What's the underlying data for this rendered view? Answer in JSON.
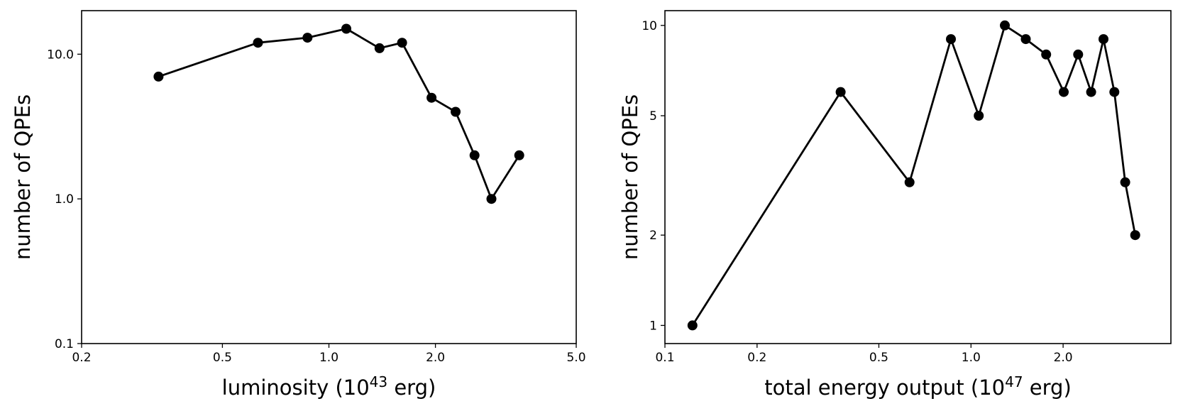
{
  "chart_data": [
    {
      "type": "line",
      "xscale": "log",
      "yscale": "log",
      "xlim": [
        0.2,
        5.0
      ],
      "ylim": [
        0.1,
        20
      ],
      "xticks": [
        {
          "value": 0.2,
          "label": "0.2"
        },
        {
          "value": 0.5,
          "label": "0.5"
        },
        {
          "value": 1.0,
          "label": "1.0"
        },
        {
          "value": 2.0,
          "label": "2.0"
        },
        {
          "value": 5.0,
          "label": "5.0"
        }
      ],
      "yticks": [
        {
          "value": 0.1,
          "label": "0.1"
        },
        {
          "value": 1.0,
          "label": "1.0"
        },
        {
          "value": 10.0,
          "label": "10.0"
        }
      ],
      "xlabel": {
        "text": "luminosity (10",
        "sup": "43",
        "unit": " erg)"
      },
      "ylabel": "number of QPEs",
      "color": "#000000",
      "series": [
        {
          "name": "QPEs",
          "x": [
            0.33,
            0.63,
            0.87,
            1.12,
            1.39,
            1.61,
            1.95,
            2.28,
            2.58,
            2.88,
            3.45
          ],
          "y": [
            7,
            12,
            13,
            15,
            11,
            12,
            5,
            4,
            2,
            1,
            2
          ]
        }
      ]
    },
    {
      "type": "line",
      "xscale": "log",
      "yscale": "log",
      "xlim": [
        0.1,
        4.5
      ],
      "ylim": [
        0.87,
        11.2
      ],
      "xticks": [
        {
          "value": 0.1,
          "label": "0.1"
        },
        {
          "value": 0.2,
          "label": "0.2"
        },
        {
          "value": 0.5,
          "label": "0.5"
        },
        {
          "value": 1.0,
          "label": "1.0"
        },
        {
          "value": 2.0,
          "label": "2.0"
        }
      ],
      "yticks": [
        {
          "value": 1,
          "label": "1"
        },
        {
          "value": 2,
          "label": "2"
        },
        {
          "value": 5,
          "label": "5"
        },
        {
          "value": 10,
          "label": "10"
        }
      ],
      "xlabel": {
        "text": "total energy output (10",
        "sup": "47",
        "unit": " erg)"
      },
      "ylabel": "number of QPEs",
      "color": "#000000",
      "series": [
        {
          "name": "QPEs",
          "x": [
            0.123,
            0.375,
            0.63,
            0.86,
            1.06,
            1.29,
            1.51,
            1.76,
            2.01,
            2.24,
            2.47,
            2.71,
            2.94,
            3.19,
            3.44
          ],
          "y": [
            1,
            6,
            3,
            9,
            5,
            10,
            9,
            8,
            6,
            8,
            6,
            9,
            6,
            3,
            2
          ]
        }
      ]
    }
  ]
}
